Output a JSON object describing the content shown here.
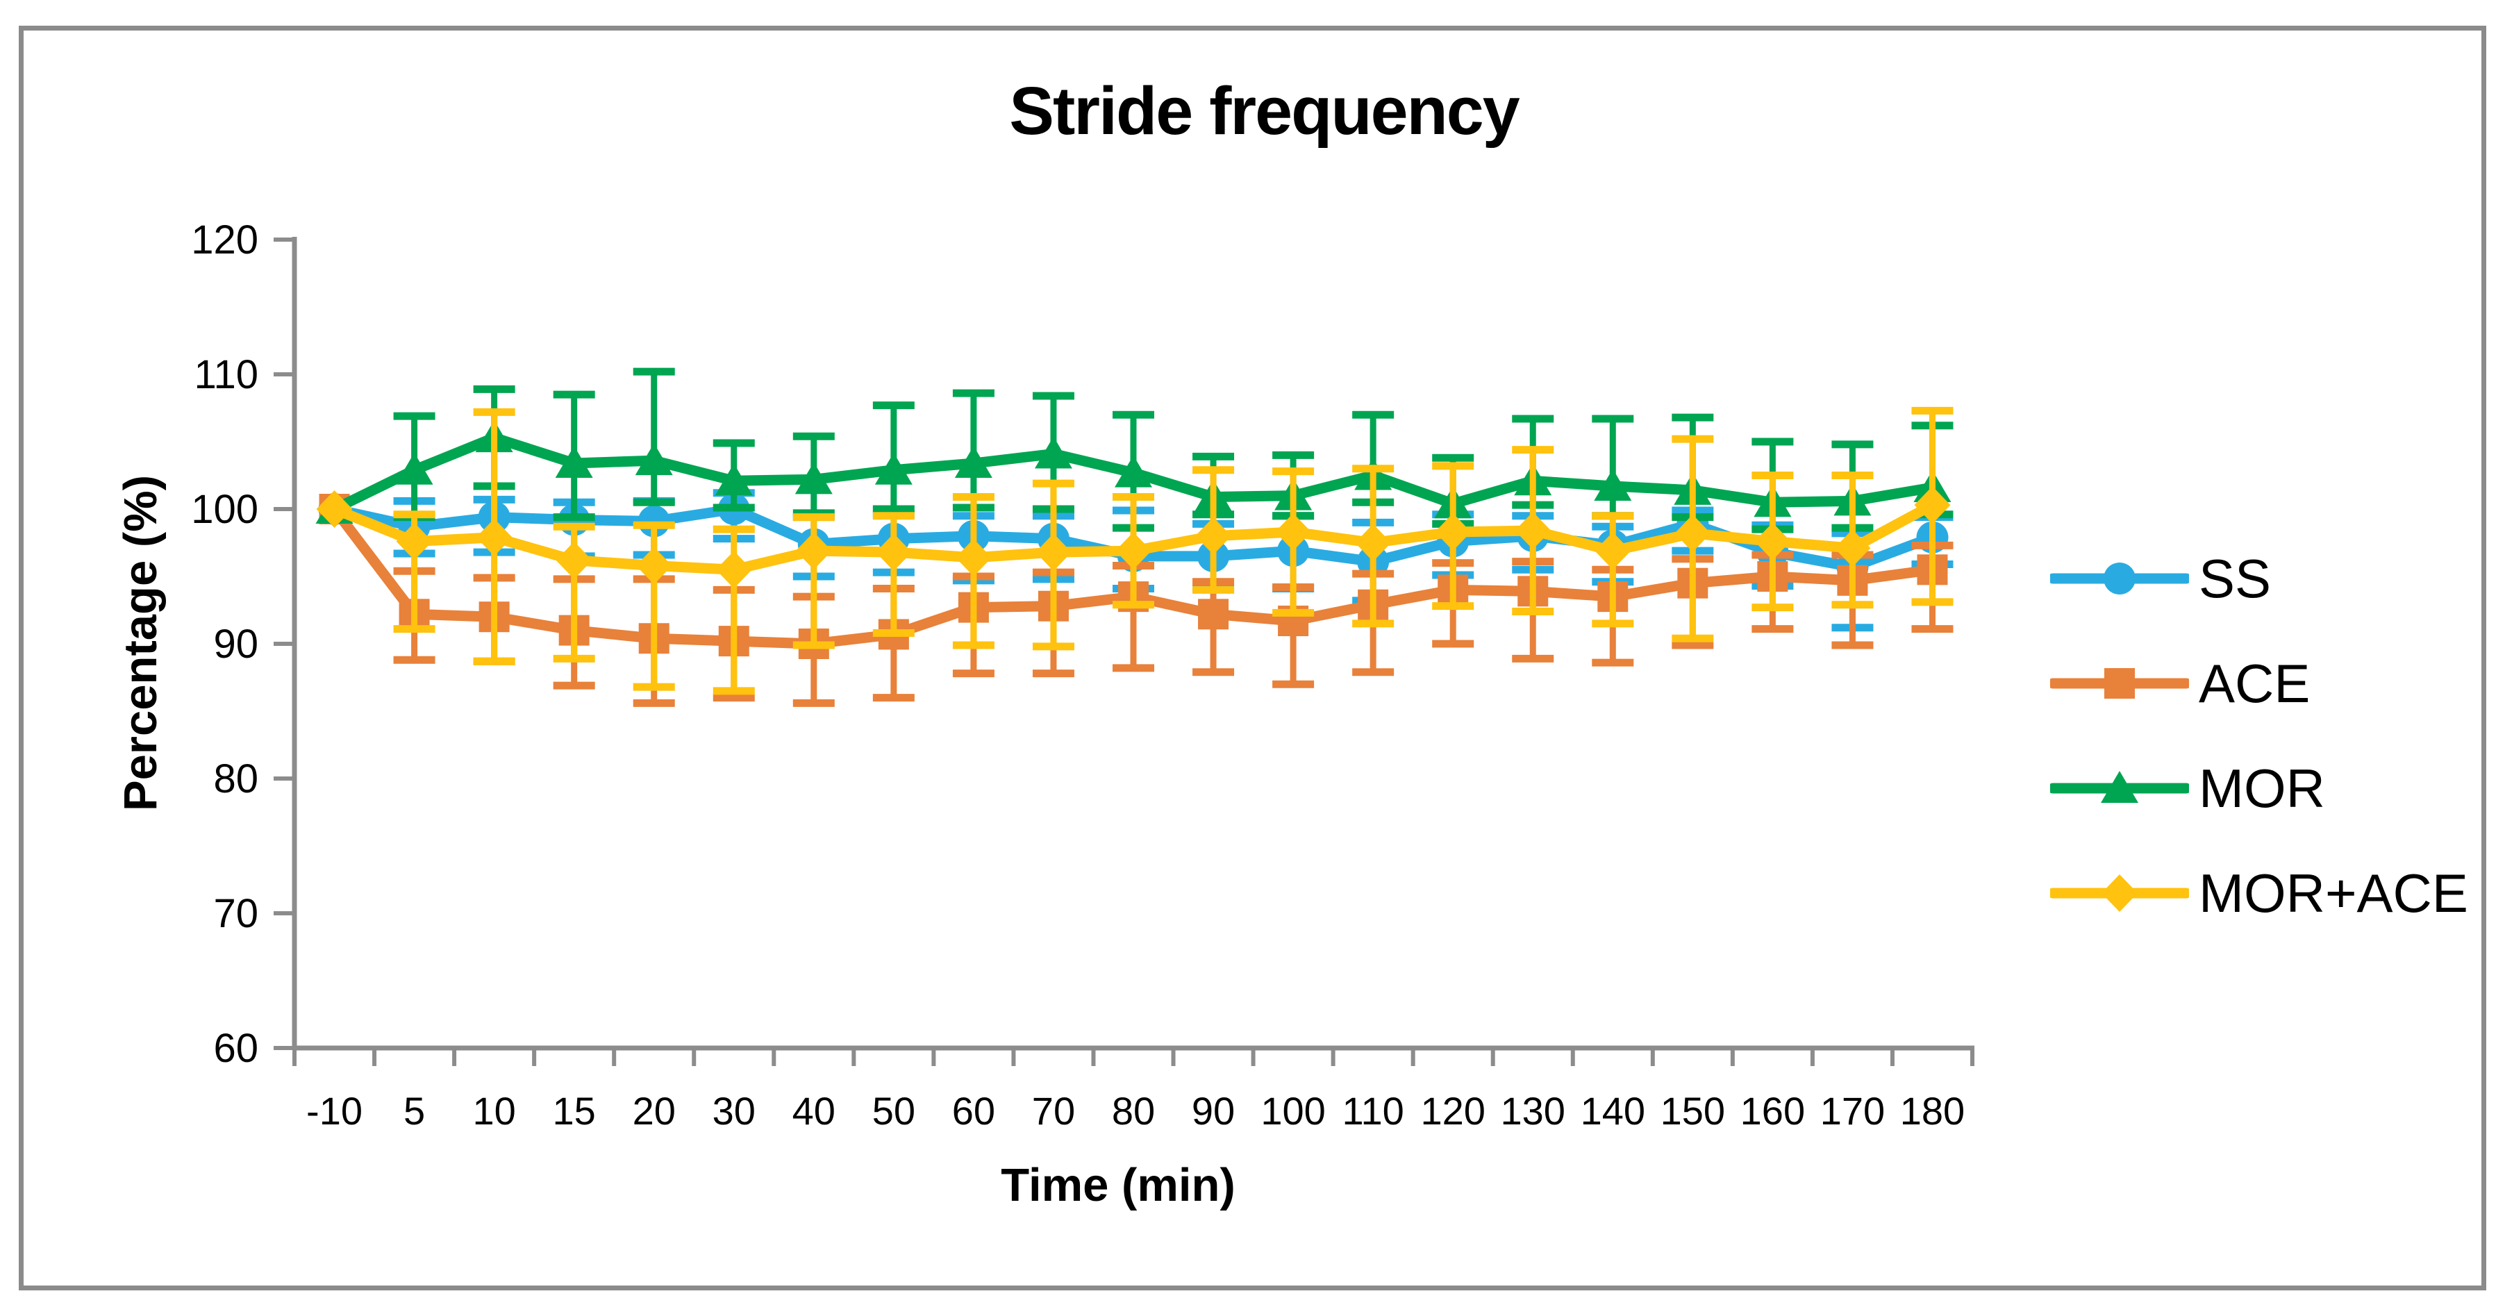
{
  "frame": {
    "border_color": "#8b8b8b",
    "background": "#ffffff"
  },
  "chart_data": {
    "type": "line",
    "title": "Stride frequency",
    "xlabel": "Time (min)",
    "ylabel": "Percentage (%)",
    "ylim": [
      60,
      120
    ],
    "yticks": [
      120,
      110,
      100,
      90,
      80,
      70,
      60
    ],
    "grid": false,
    "legend_position": "right",
    "axis_color": "#8c8c8c",
    "text_color": "#000000",
    "error_bars": true,
    "categories": [
      "-10",
      "5",
      "10",
      "15",
      "20",
      "30",
      "40",
      "50",
      "60",
      "70",
      "80",
      "90",
      "100",
      "110",
      "120",
      "130",
      "140",
      "150",
      "160",
      "170",
      "180"
    ],
    "series": [
      {
        "name": "SS",
        "color": "#29abe2",
        "marker": "circle",
        "values": [
          100,
          98.7,
          99.4,
          99.2,
          99.1,
          100.0,
          97.4,
          97.8,
          98.0,
          97.8,
          96.5,
          96.5,
          96.9,
          96.1,
          97.6,
          98.0,
          97.3,
          98.9,
          96.8,
          95.7,
          97.9
        ],
        "err_up": [
          0,
          1.9,
          1.3,
          1.3,
          1.5,
          1.2,
          2.0,
          1.8,
          1.5,
          1.7,
          3.4,
          2.4,
          2.6,
          2.9,
          2.0,
          1.5,
          1.4,
          1.0,
          2.0,
          2.5,
          1.5
        ],
        "err_down": [
          0,
          2.0,
          2.6,
          2.7,
          2.5,
          2.2,
          2.4,
          2.5,
          3.3,
          3.0,
          2.4,
          2.4,
          2.8,
          2.9,
          2.5,
          2.5,
          2.7,
          2.0,
          2.5,
          4.5,
          2.0
        ]
      },
      {
        "name": "ACE",
        "color": "#e8813a",
        "marker": "square",
        "values": [
          100,
          92.2,
          92.0,
          91.0,
          90.4,
          90.2,
          90.0,
          90.7,
          92.7,
          92.8,
          93.5,
          92.2,
          91.7,
          92.9,
          94.0,
          93.9,
          93.5,
          94.5,
          95.0,
          94.7,
          95.5
        ],
        "err_up": [
          0,
          3.2,
          2.9,
          3.8,
          4.4,
          3.8,
          3.5,
          3.4,
          2.3,
          2.5,
          2.3,
          2.4,
          2.5,
          2.3,
          2.0,
          2.2,
          2.0,
          1.8,
          1.6,
          1.9,
          1.8
        ],
        "err_down": [
          0,
          3.4,
          3.3,
          4.1,
          4.8,
          4.2,
          4.4,
          4.7,
          4.9,
          5.0,
          5.3,
          4.3,
          4.7,
          5.0,
          4.0,
          5.0,
          4.9,
          4.6,
          3.9,
          4.8,
          4.4
        ]
      },
      {
        "name": "MOR",
        "color": "#00a551",
        "marker": "triangle",
        "values": [
          100,
          102.9,
          105.3,
          103.4,
          103.6,
          102.1,
          102.2,
          102.9,
          103.4,
          104.1,
          102.7,
          100.9,
          101.0,
          102.5,
          100.4,
          102.1,
          101.7,
          101.4,
          100.5,
          100.6,
          101.6
        ],
        "err_up": [
          0,
          4.0,
          3.6,
          5.1,
          6.6,
          2.8,
          3.2,
          4.8,
          5.2,
          4.3,
          4.3,
          3.0,
          3.0,
          4.5,
          3.4,
          4.6,
          5.0,
          5.4,
          4.5,
          4.2,
          4.6
        ],
        "err_down": [
          0,
          3.5,
          3.6,
          4.0,
          3.1,
          2.0,
          2.5,
          2.9,
          3.3,
          4.1,
          4.1,
          1.3,
          1.5,
          2.0,
          1.5,
          1.8,
          2.2,
          2.0,
          2.0,
          2.0,
          2.0
        ]
      },
      {
        "name": "MOR+ACE",
        "color": "#ffc20e",
        "marker": "diamond",
        "values": [
          100,
          97.6,
          97.9,
          96.2,
          95.8,
          95.5,
          96.9,
          96.8,
          96.4,
          96.8,
          96.9,
          98.0,
          98.3,
          97.5,
          98.3,
          98.4,
          96.9,
          98.2,
          97.6,
          97.1,
          100.3
        ],
        "err_up": [
          0,
          2.0,
          9.3,
          2.5,
          3.0,
          3.0,
          2.5,
          2.7,
          4.5,
          5.1,
          4.0,
          4.9,
          4.5,
          5.5,
          4.9,
          6.0,
          2.6,
          7.0,
          4.9,
          5.4,
          7.0
        ],
        "err_down": [
          0,
          6.5,
          9.2,
          7.3,
          9.0,
          9.0,
          7.0,
          6.0,
          6.5,
          7.0,
          4.0,
          4.0,
          6.0,
          6.0,
          5.5,
          6.0,
          5.4,
          7.8,
          4.9,
          4.2,
          7.2
        ]
      }
    ]
  }
}
